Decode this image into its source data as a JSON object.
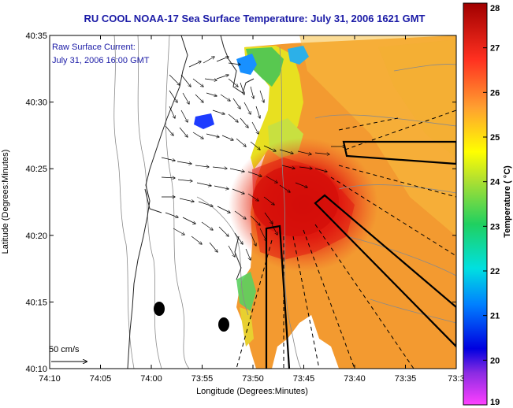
{
  "title": "RU COOL  NOAA-17  Sea Surface Temperature:  July 31, 2006 1621 GMT",
  "annotation": {
    "line1": "Raw Surface Current:",
    "line2": "July 31, 2006 16:00 GMT"
  },
  "scale_label": "50 cm/s",
  "axes": {
    "xlabel": "Longitude (Degrees:Minutes)",
    "ylabel": "Latitude (Degrees:Minutes)",
    "xticks": [
      "74:10",
      "74:05",
      "74:00",
      "73:55",
      "73:50",
      "73:45",
      "73:40",
      "73:35",
      "73:3"
    ],
    "yticks": [
      "40:35",
      "40:30",
      "40:25",
      "40:20",
      "40:15",
      "40:10"
    ]
  },
  "colorbar": {
    "label": "Temperature ( °C)",
    "ticks": [
      "28",
      "27",
      "26",
      "25",
      "24",
      "23",
      "22",
      "21",
      "20",
      "19"
    ],
    "range": [
      19,
      28
    ]
  },
  "colors": {
    "title": "#1a1aa6",
    "land": "#ffffff",
    "warm_core": "#d01010",
    "cold_spot": "#1e3cff"
  }
}
